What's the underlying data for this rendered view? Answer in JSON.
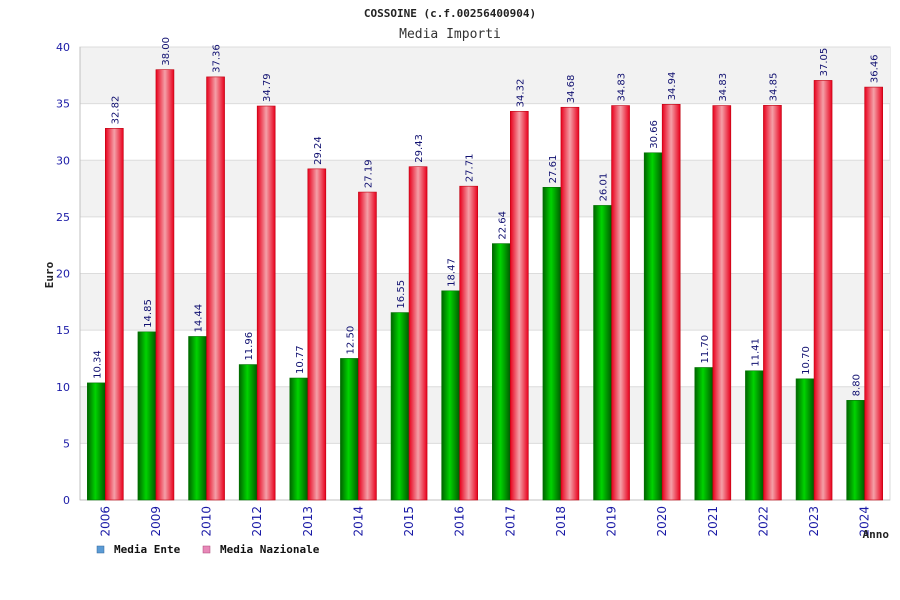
{
  "chart_data": {
    "type": "bar",
    "title": "COSSOINE (c.f.00256400904)",
    "subtitle": "Media Importi",
    "xlabel": "Anno",
    "ylabel": "Euro",
    "ylim": [
      0,
      40
    ],
    "yticks": [
      0,
      5,
      10,
      15,
      20,
      25,
      30,
      35,
      40
    ],
    "grid": true,
    "legend_position": "bottom-left",
    "categories": [
      "2006",
      "2009",
      "2010",
      "2012",
      "2013",
      "2014",
      "2015",
      "2016",
      "2017",
      "2018",
      "2019",
      "2020",
      "2021",
      "2022",
      "2023",
      "2024"
    ],
    "series": [
      {
        "name": "Media Ente",
        "color": "#00a800",
        "legend_color": "#5b9bd5",
        "values": [
          10.34,
          14.85,
          14.44,
          11.96,
          10.77,
          12.5,
          16.55,
          18.47,
          22.64,
          27.61,
          26.01,
          30.66,
          11.7,
          11.41,
          10.7,
          8.8
        ],
        "labels": [
          "10.34",
          "14.85",
          "14.44",
          "11.96",
          "10.77",
          "12.50",
          "16.55",
          "18.47",
          "22.64",
          "27.61",
          "26.01",
          "30.66",
          "11.70",
          "11.41",
          "10.70",
          "8.80"
        ]
      },
      {
        "name": "Media Nazionale",
        "color": "#e00010",
        "legend_color": "#e888b8",
        "values": [
          32.82,
          38.0,
          37.36,
          34.79,
          29.24,
          27.19,
          29.43,
          27.71,
          34.32,
          34.68,
          34.83,
          34.94,
          34.83,
          34.85,
          37.05,
          36.46
        ],
        "labels": [
          "32.82",
          "38.00",
          "37.36",
          "34.79",
          "29.24",
          "27.19",
          "29.43",
          "27.71",
          "34.32",
          "34.68",
          "34.83",
          "34.94",
          "34.83",
          "34.85",
          "37.05",
          "36.46"
        ]
      }
    ]
  }
}
